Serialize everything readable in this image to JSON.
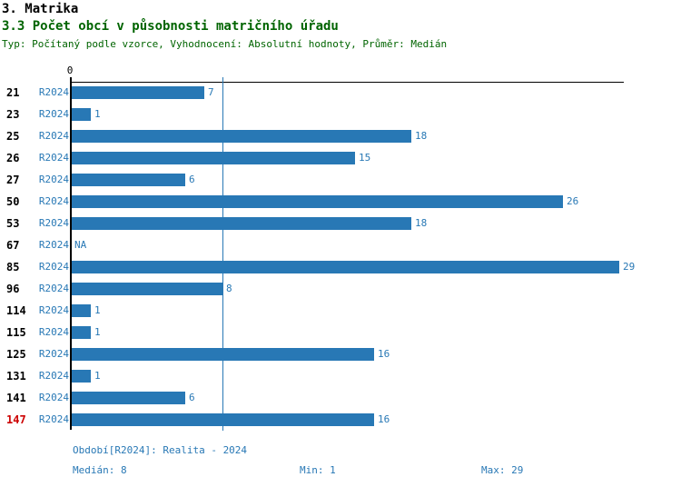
{
  "header": {
    "title": "3. Matrika",
    "subtitle": "3.3 Počet obcí v působnosti matričního úřadu",
    "meta": "Typ: Počítaný podle vzorce, Vyhodnocení: Absolutní hodnoty, Průměr: Medián"
  },
  "chart_data": {
    "type": "bar",
    "orientation": "horizontal",
    "title": "3.3 Počet obcí v působnosti matričního úřadu",
    "series_label": "R2024",
    "categories": [
      "21",
      "23",
      "25",
      "26",
      "27",
      "50",
      "53",
      "67",
      "85",
      "96",
      "114",
      "115",
      "125",
      "131",
      "141",
      "147"
    ],
    "values": [
      7,
      1,
      18,
      15,
      6,
      26,
      18,
      null,
      29,
      8,
      1,
      1,
      16,
      1,
      6,
      16
    ],
    "na_text": "NA",
    "xlim": [
      0,
      29
    ],
    "x_axis_tick": "0",
    "median_value": 8,
    "highlight_category": "147",
    "grid": "median-line-only",
    "legend_position": "none"
  },
  "footer": {
    "period": "Období[R2024]: Realita - 2024",
    "median": "Medián: 8",
    "min": "Min: 1",
    "max": "Max: 29"
  },
  "colors": {
    "bar": "#2878B5",
    "blue_text": "#2878B5",
    "median_line": "#2878B5",
    "axis": "#000000",
    "title": "#000000",
    "subtitle_green": "#006400",
    "highlight_red": "#CC0000",
    "background": "#FFFFFF"
  }
}
